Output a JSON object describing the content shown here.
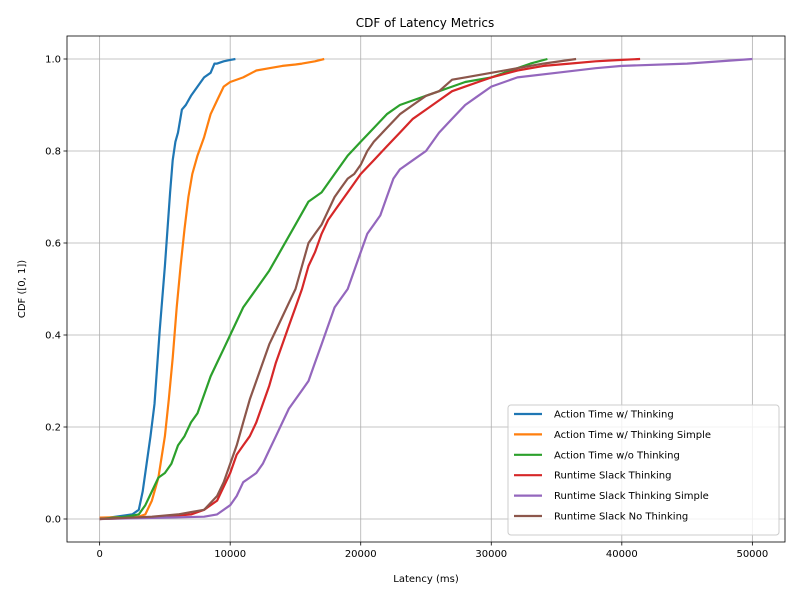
{
  "chart_data": {
    "type": "line",
    "title": "CDF of Latency Metrics",
    "xlabel": "Latency (ms)",
    "ylabel": "CDF ([0, 1])",
    "xlim": [
      -2500,
      52500
    ],
    "ylim": [
      -0.05,
      1.05
    ],
    "xticks": [
      0,
      10000,
      20000,
      30000,
      40000,
      50000
    ],
    "xtick_labels": [
      "0",
      "10000",
      "20000",
      "30000",
      "40000",
      "50000"
    ],
    "yticks": [
      0.0,
      0.2,
      0.4,
      0.6,
      0.8,
      1.0
    ],
    "ytick_labels": [
      "0.0",
      "0.2",
      "0.4",
      "0.6",
      "0.8",
      "1.0"
    ],
    "grid": true,
    "legend_position": "bottom-right",
    "series": [
      {
        "name": "Action Time w/ Thinking",
        "color": "#1f77b4",
        "x": [
          0,
          2500,
          3000,
          3300,
          3600,
          3900,
          4200,
          4400,
          4600,
          4800,
          5000,
          5200,
          5400,
          5600,
          5800,
          6000,
          6300,
          6600,
          7000,
          7500,
          8000,
          8500,
          8800,
          9000,
          9500,
          10000,
          10400
        ],
        "y": [
          0.0,
          0.01,
          0.02,
          0.06,
          0.12,
          0.18,
          0.25,
          0.33,
          0.41,
          0.48,
          0.55,
          0.63,
          0.71,
          0.78,
          0.82,
          0.84,
          0.89,
          0.9,
          0.92,
          0.94,
          0.96,
          0.97,
          0.99,
          0.99,
          0.995,
          0.998,
          1.0
        ]
      },
      {
        "name": "Action Time w/ Thinking Simple",
        "color": "#ff7f0e",
        "x": [
          0,
          3000,
          3500,
          4000,
          4500,
          5000,
          5300,
          5600,
          5900,
          6200,
          6500,
          6800,
          7100,
          7500,
          8000,
          8500,
          9000,
          9500,
          10000,
          11000,
          12000,
          13000,
          14000,
          15000,
          15500,
          16500,
          17200
        ],
        "y": [
          0.003,
          0.005,
          0.01,
          0.04,
          0.09,
          0.18,
          0.26,
          0.35,
          0.46,
          0.55,
          0.63,
          0.7,
          0.75,
          0.79,
          0.83,
          0.88,
          0.91,
          0.94,
          0.95,
          0.96,
          0.975,
          0.98,
          0.985,
          0.988,
          0.99,
          0.995,
          1.0
        ]
      },
      {
        "name": "Action Time w/o Thinking",
        "color": "#2ca02c",
        "x": [
          0,
          2000,
          3000,
          3500,
          4000,
          4500,
          5000,
          5500,
          6000,
          6500,
          7000,
          7500,
          8000,
          8500,
          9000,
          9500,
          10000,
          11000,
          12000,
          13000,
          14000,
          15000,
          16000,
          17000,
          18000,
          19000,
          20000,
          21000,
          22000,
          23000,
          24000,
          25000,
          26000,
          27000,
          28000,
          29000,
          30000,
          31000,
          32000,
          33000,
          34300
        ],
        "y": [
          0.0,
          0.005,
          0.01,
          0.03,
          0.06,
          0.09,
          0.1,
          0.12,
          0.16,
          0.18,
          0.21,
          0.23,
          0.27,
          0.31,
          0.34,
          0.37,
          0.4,
          0.46,
          0.5,
          0.54,
          0.59,
          0.64,
          0.69,
          0.71,
          0.75,
          0.79,
          0.82,
          0.85,
          0.88,
          0.9,
          0.91,
          0.92,
          0.93,
          0.94,
          0.95,
          0.955,
          0.96,
          0.97,
          0.98,
          0.99,
          1.0
        ]
      },
      {
        "name": "Runtime Slack Thinking",
        "color": "#d62728",
        "x": [
          0,
          5000,
          7000,
          8000,
          9000,
          10000,
          10500,
          11000,
          11500,
          12000,
          12500,
          13000,
          13500,
          14000,
          14500,
          15000,
          15500,
          16000,
          16500,
          17000,
          17500,
          18000,
          18500,
          19000,
          19500,
          20000,
          21000,
          22000,
          23000,
          24000,
          25000,
          26000,
          27000,
          28000,
          29000,
          30000,
          32000,
          34000,
          36000,
          38000,
          40000,
          41400
        ],
        "y": [
          0.0,
          0.005,
          0.01,
          0.02,
          0.04,
          0.1,
          0.14,
          0.16,
          0.18,
          0.21,
          0.25,
          0.29,
          0.34,
          0.38,
          0.42,
          0.46,
          0.5,
          0.55,
          0.58,
          0.62,
          0.65,
          0.67,
          0.69,
          0.71,
          0.73,
          0.75,
          0.78,
          0.81,
          0.84,
          0.87,
          0.89,
          0.91,
          0.93,
          0.94,
          0.95,
          0.96,
          0.975,
          0.985,
          0.99,
          0.995,
          0.998,
          1.0
        ]
      },
      {
        "name": "Runtime Slack Thinking Simple",
        "color": "#9467bd",
        "x": [
          0,
          5000,
          8000,
          9000,
          10000,
          10500,
          11000,
          11500,
          12000,
          12500,
          13000,
          13500,
          14000,
          14500,
          15000,
          15500,
          16000,
          16500,
          17000,
          17500,
          18000,
          18500,
          19000,
          19500,
          20000,
          20500,
          21000,
          21500,
          22000,
          22500,
          23000,
          24000,
          25000,
          26000,
          27000,
          28000,
          29000,
          30000,
          32000,
          35000,
          38000,
          40000,
          45000,
          50000
        ],
        "y": [
          0.0,
          0.003,
          0.005,
          0.01,
          0.03,
          0.05,
          0.08,
          0.09,
          0.1,
          0.12,
          0.15,
          0.18,
          0.21,
          0.24,
          0.26,
          0.28,
          0.3,
          0.34,
          0.38,
          0.42,
          0.46,
          0.48,
          0.5,
          0.54,
          0.58,
          0.62,
          0.64,
          0.66,
          0.7,
          0.74,
          0.76,
          0.78,
          0.8,
          0.84,
          0.87,
          0.9,
          0.92,
          0.94,
          0.96,
          0.97,
          0.98,
          0.985,
          0.99,
          1.0
        ]
      },
      {
        "name": "Runtime Slack No Thinking",
        "color": "#8c564b",
        "x": [
          0,
          4000,
          6000,
          7000,
          8000,
          9000,
          9500,
          10000,
          10500,
          11000,
          11500,
          12000,
          12500,
          13000,
          13500,
          14000,
          14500,
          15000,
          15500,
          16000,
          16500,
          17000,
          17500,
          18000,
          18500,
          19000,
          19500,
          20000,
          20500,
          21000,
          22000,
          23000,
          24000,
          25000,
          26000,
          27000,
          28000,
          30000,
          32000,
          34000,
          36500
        ],
        "y": [
          0.0,
          0.005,
          0.01,
          0.015,
          0.02,
          0.05,
          0.08,
          0.12,
          0.16,
          0.21,
          0.26,
          0.3,
          0.34,
          0.38,
          0.41,
          0.44,
          0.47,
          0.5,
          0.55,
          0.6,
          0.62,
          0.64,
          0.67,
          0.7,
          0.72,
          0.74,
          0.75,
          0.77,
          0.8,
          0.82,
          0.85,
          0.88,
          0.9,
          0.92,
          0.93,
          0.955,
          0.96,
          0.97,
          0.98,
          0.99,
          1.0
        ]
      }
    ]
  }
}
